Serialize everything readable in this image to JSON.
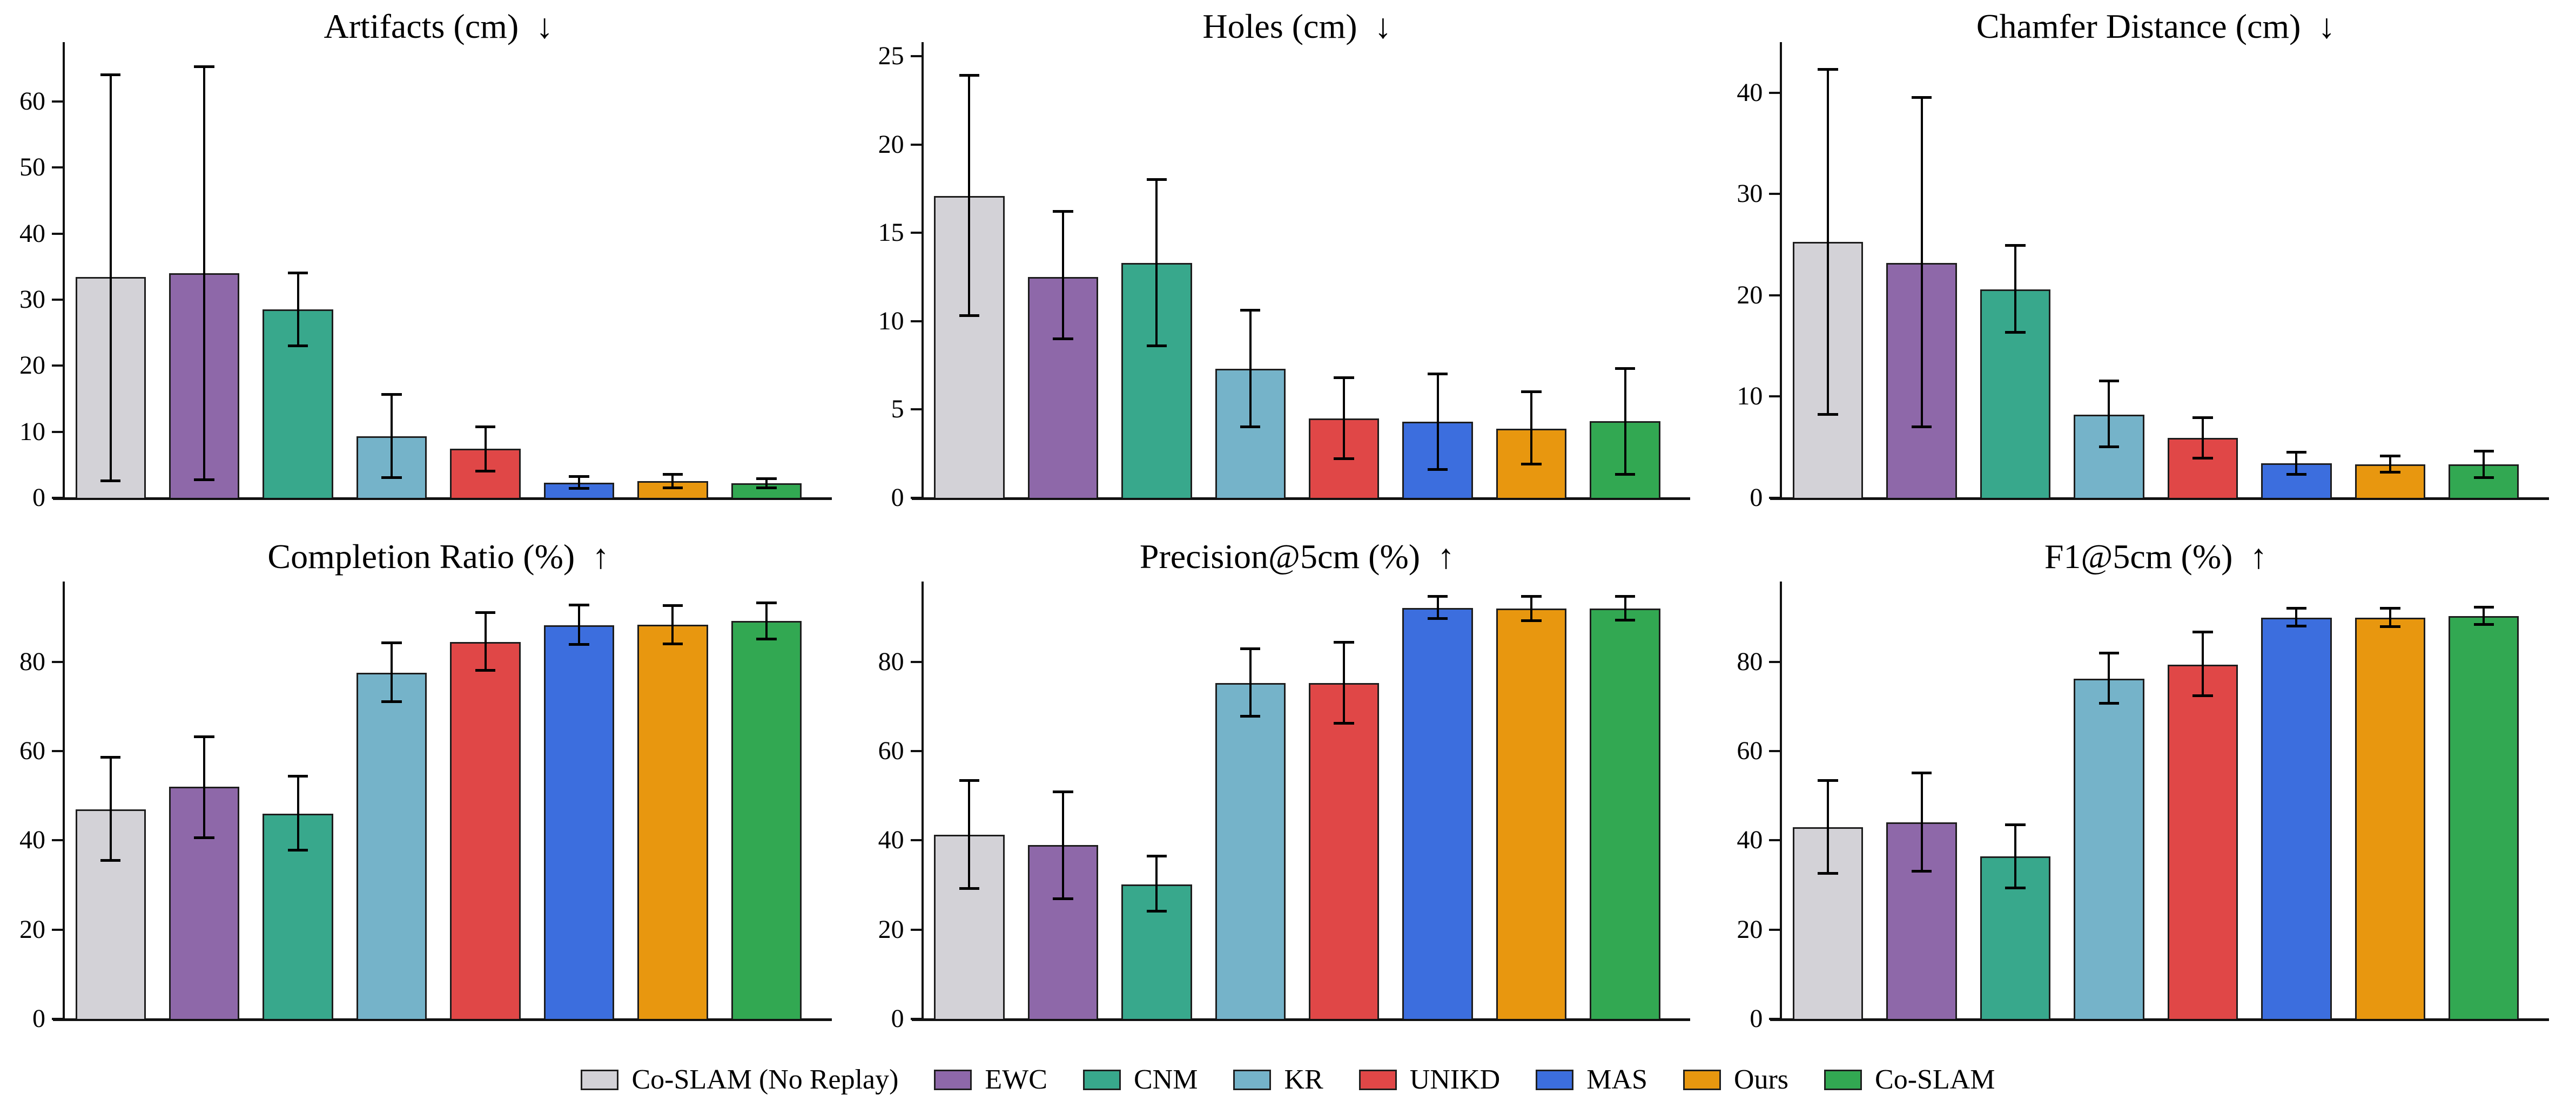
{
  "figure": {
    "background": "#ffffff",
    "text_color": "#000000",
    "axis_color": "#111111",
    "bar_edge_color": "#1d1d1d",
    "error_bar_color": "#000000",
    "methods": [
      "Co-SLAM (No Replay)",
      "EWC",
      "CNM",
      "KR",
      "UNIKD",
      "MAS",
      "Ours",
      "Co-SLAM"
    ],
    "method_slugs": [
      "co-slam-no-replay",
      "ewc",
      "cnm",
      "kr",
      "unikd",
      "mas",
      "ours",
      "co-slam"
    ],
    "colors": [
      "#d3d2d7",
      "#8e68a9",
      "#38a88c",
      "#75b3c9",
      "#e04747",
      "#3c6ede",
      "#e8970f",
      "#32a852"
    ],
    "legend_position": "bottom-center"
  },
  "chart_data": [
    {
      "type": "bar",
      "slug": "artifacts",
      "title": "Artifacts (cm)  ↓",
      "better": "lower",
      "categories": [
        "Co-SLAM (No Replay)",
        "EWC",
        "CNM",
        "KR",
        "UNIKD",
        "MAS",
        "Ours",
        "Co-SLAM"
      ],
      "values": [
        33.4,
        34.0,
        28.5,
        9.3,
        7.4,
        2.3,
        2.5,
        2.2
      ],
      "err_low": [
        2.5,
        2.7,
        23.0,
        3.0,
        4.0,
        1.4,
        1.5,
        1.5
      ],
      "err_high": [
        64.0,
        65.2,
        34.0,
        15.6,
        10.7,
        3.2,
        3.5,
        2.9
      ],
      "yticks": [
        0,
        10,
        20,
        30,
        40,
        50,
        60
      ],
      "ylim": [
        0,
        69
      ],
      "xlabel": "",
      "ylabel": "",
      "grid": false
    },
    {
      "type": "bar",
      "slug": "holes",
      "title": "Holes (cm)  ↓",
      "better": "lower",
      "categories": [
        "Co-SLAM (No Replay)",
        "EWC",
        "CNM",
        "KR",
        "UNIKD",
        "MAS",
        "Ours",
        "Co-SLAM"
      ],
      "values": [
        17.1,
        12.5,
        13.3,
        7.3,
        4.5,
        4.3,
        3.9,
        4.35
      ],
      "err_low": [
        10.3,
        9.0,
        8.6,
        4.0,
        2.2,
        1.6,
        1.9,
        1.3
      ],
      "err_high": [
        23.9,
        16.2,
        18.0,
        10.6,
        6.8,
        7.0,
        6.0,
        7.3
      ],
      "yticks": [
        0,
        5,
        10,
        15,
        20,
        25
      ],
      "ylim": [
        0,
        25.8
      ],
      "xlabel": "",
      "ylabel": "",
      "grid": false
    },
    {
      "type": "bar",
      "slug": "chamfer-distance",
      "title": "Chamfer Distance (cm)  ↓",
      "better": "lower",
      "categories": [
        "Co-SLAM (No Replay)",
        "EWC",
        "CNM",
        "KR",
        "UNIKD",
        "MAS",
        "Ours",
        "Co-SLAM"
      ],
      "values": [
        25.3,
        23.2,
        20.6,
        8.2,
        5.9,
        3.4,
        3.3,
        3.3
      ],
      "err_low": [
        8.2,
        7.0,
        16.3,
        5.0,
        3.9,
        2.3,
        2.5,
        2.0
      ],
      "err_high": [
        42.3,
        39.5,
        24.9,
        11.5,
        7.9,
        4.5,
        4.1,
        4.6
      ],
      "yticks": [
        0,
        10,
        20,
        30,
        40
      ],
      "ylim": [
        0,
        45
      ],
      "xlabel": "",
      "ylabel": "",
      "grid": false
    },
    {
      "type": "bar",
      "slug": "completion-ratio",
      "title": "Completion Ratio (%)  ↑",
      "better": "higher",
      "categories": [
        "Co-SLAM (No Replay)",
        "EWC",
        "CNM",
        "KR",
        "UNIKD",
        "MAS",
        "Ours",
        "Co-SLAM"
      ],
      "values": [
        47.0,
        52.0,
        46.0,
        77.5,
        84.5,
        88.2,
        88.3,
        89.2
      ],
      "err_low": [
        35.5,
        40.5,
        37.7,
        71.0,
        78.0,
        83.8,
        84.0,
        85.0
      ],
      "err_high": [
        58.5,
        63.2,
        54.3,
        84.2,
        91.0,
        92.7,
        92.6,
        93.2
      ],
      "yticks": [
        0,
        20,
        40,
        60,
        80
      ],
      "ylim": [
        0,
        98
      ],
      "xlabel": "",
      "ylabel": "",
      "grid": false
    },
    {
      "type": "bar",
      "slug": "precision-5cm",
      "title": "Precision@5cm (%)  ↑",
      "better": "higher",
      "categories": [
        "Co-SLAM (No Replay)",
        "EWC",
        "CNM",
        "KR",
        "UNIKD",
        "MAS",
        "Ours",
        "Co-SLAM"
      ],
      "values": [
        41.3,
        38.9,
        30.1,
        75.3,
        75.2,
        92.1,
        91.9,
        91.9
      ],
      "err_low": [
        29.2,
        26.9,
        24.1,
        67.8,
        66.2,
        89.6,
        89.2,
        89.3
      ],
      "err_high": [
        53.4,
        50.8,
        36.4,
        82.9,
        84.3,
        94.6,
        94.6,
        94.6
      ],
      "yticks": [
        0,
        20,
        40,
        60,
        80
      ],
      "ylim": [
        0,
        98
      ],
      "xlabel": "",
      "ylabel": "",
      "grid": false
    },
    {
      "type": "bar",
      "slug": "f1-5cm",
      "title": "F1@5cm (%)  ↑",
      "better": "higher",
      "categories": [
        "Co-SLAM (No Replay)",
        "EWC",
        "CNM",
        "KR",
        "UNIKD",
        "MAS",
        "Ours",
        "Co-SLAM"
      ],
      "values": [
        42.9,
        44.1,
        36.4,
        76.2,
        79.4,
        89.9,
        89.9,
        90.3
      ],
      "err_low": [
        32.6,
        33.0,
        29.3,
        70.6,
        72.4,
        87.9,
        87.8,
        88.3
      ],
      "err_high": [
        53.3,
        55.1,
        43.4,
        81.9,
        86.6,
        91.9,
        91.9,
        92.2
      ],
      "yticks": [
        0,
        20,
        40,
        60,
        80
      ],
      "ylim": [
        0,
        98
      ],
      "xlabel": "",
      "ylabel": "",
      "grid": false
    }
  ]
}
